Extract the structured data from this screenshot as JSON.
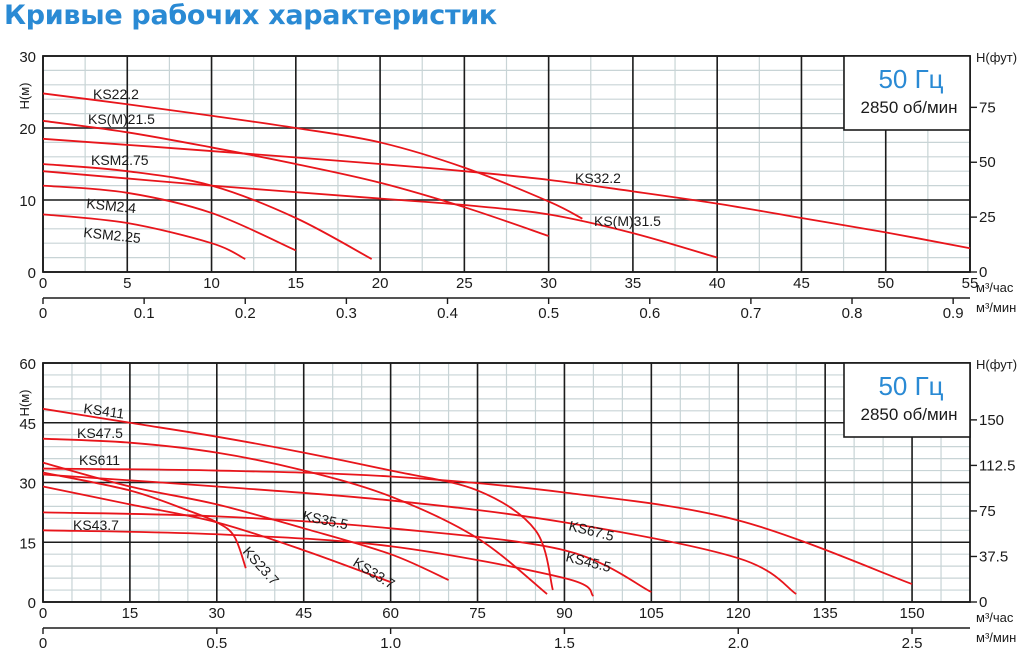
{
  "page": {
    "title": "Кривые рабочих характеристик"
  },
  "charts": [
    {
      "id": "top",
      "badge": {
        "frequency": "50 Гц",
        "speed": "2850 об/мин"
      },
      "y_left_label": "H(м)",
      "y_right_label": "H(фут)",
      "x_unit_1": "м³/час",
      "x_unit_2": "м³/мин",
      "y_ticks": [
        "0",
        "10",
        "20",
        "30"
      ],
      "y_right_ticks": [
        "0",
        "25",
        "50",
        "75"
      ],
      "x_ticks": [
        "0",
        "5",
        "10",
        "15",
        "20",
        "25",
        "30",
        "35",
        "40",
        "45",
        "50",
        "55"
      ],
      "x2_ticks": [
        "0",
        "0.1",
        "0.2",
        "0.3",
        "0.4",
        "0.5",
        "0.6",
        "0.7",
        "0.8",
        "0.9"
      ]
    },
    {
      "id": "bottom",
      "badge": {
        "frequency": "50 Гц",
        "speed": "2850 об/мин"
      },
      "y_left_label": "H(м)",
      "y_right_label": "H(фут)",
      "x_unit_1": "м³/час",
      "x_unit_2": "м³/мин",
      "y_ticks": [
        "0",
        "15",
        "30",
        "45",
        "60"
      ],
      "y_right_ticks": [
        "0",
        "37.5",
        "75",
        "112.5",
        "150"
      ],
      "x_ticks": [
        "0",
        "15",
        "30",
        "45",
        "60",
        "75",
        "90",
        "105",
        "120",
        "135",
        "150"
      ],
      "x2_ticks": [
        "0",
        "0.5",
        "1.0",
        "1.5",
        "2.0",
        "2.5"
      ]
    }
  ],
  "chart_data": [
    {
      "type": "line",
      "title": "Кривые рабочих характеристик — 50 Гц, 2850 об/мин",
      "xlabel": "м³/час",
      "x2label": "м³/мин",
      "ylabel": "H(м)",
      "y2label": "H(фут)",
      "xlim": [
        0,
        55
      ],
      "ylim": [
        0,
        30
      ],
      "grid": true,
      "series": [
        {
          "name": "KS22.2",
          "x": [
            0,
            5,
            10,
            15,
            20,
            25,
            30,
            32
          ],
          "y": [
            24.8,
            23.3,
            21.7,
            20.0,
            18.0,
            14.5,
            9.8,
            7.4
          ]
        },
        {
          "name": "KS(M)21.5",
          "x": [
            0,
            5,
            10,
            15,
            20,
            25,
            30
          ],
          "y": [
            21.0,
            19.4,
            17.3,
            15.0,
            12.4,
            9.0,
            5.0
          ]
        },
        {
          "name": "KS32.2",
          "x": [
            0,
            10,
            20,
            25,
            30,
            35,
            40,
            45,
            50,
            55
          ],
          "y": [
            18.5,
            16.8,
            15.0,
            14.0,
            12.8,
            11.2,
            9.5,
            7.5,
            5.5,
            3.3
          ]
        },
        {
          "name": "KS(M)31.5",
          "x": [
            0,
            10,
            20,
            25,
            30,
            35,
            40
          ],
          "y": [
            14.0,
            12.0,
            10.2,
            9.3,
            8.0,
            5.4,
            2.0
          ]
        },
        {
          "name": "KSM2.75",
          "x": [
            0,
            5,
            10,
            15,
            19.5
          ],
          "y": [
            15.0,
            14.0,
            12.0,
            7.5,
            1.8
          ]
        },
        {
          "name": "KSM2.4",
          "x": [
            0,
            5,
            10,
            15
          ],
          "y": [
            12.0,
            11.0,
            8.2,
            3.0
          ]
        },
        {
          "name": "KSM2.25",
          "x": [
            0,
            5,
            10,
            12
          ],
          "y": [
            8.0,
            6.8,
            4.0,
            1.8
          ]
        }
      ]
    },
    {
      "type": "line",
      "title": "Кривые рабочих характеристик — 50 Гц, 2850 об/мин",
      "xlabel": "м³/час",
      "x2label": "м³/мин",
      "ylabel": "H(м)",
      "y2label": "H(фут)",
      "xlim": [
        0,
        160
      ],
      "ylim": [
        0,
        60
      ],
      "grid": true,
      "series": [
        {
          "name": "KS411",
          "x": [
            0,
            15,
            30,
            45,
            60,
            75,
            85,
            88
          ],
          "y": [
            48.5,
            45.0,
            41.5,
            37.5,
            33.0,
            28.0,
            18.0,
            3.0
          ]
        },
        {
          "name": "KS47.5",
          "x": [
            0,
            15,
            30,
            45,
            60,
            75,
            87
          ],
          "y": [
            41.0,
            40.0,
            37.5,
            33.0,
            26.5,
            16.0,
            2.0
          ]
        },
        {
          "name": "KS611",
          "x": [
            0,
            30,
            60,
            90,
            120,
            150
          ],
          "y": [
            33.5,
            33.0,
            31.5,
            27.5,
            20.5,
            4.5
          ]
        },
        {
          "name": "KS67.5",
          "x": [
            0,
            30,
            60,
            90,
            120,
            130
          ],
          "y": [
            32.0,
            29.0,
            25.5,
            20.0,
            11.0,
            2.0
          ]
        },
        {
          "name": "KS35.5",
          "x": [
            0,
            15,
            30,
            45,
            60,
            70
          ],
          "y": [
            35.0,
            29.0,
            24.5,
            18.5,
            12.0,
            5.5
          ]
        },
        {
          "name": "KS45.5",
          "x": [
            0,
            30,
            60,
            90,
            105
          ],
          "y": [
            22.5,
            21.5,
            18.5,
            13.0,
            2.5
          ]
        },
        {
          "name": "KS33.7",
          "x": [
            0,
            15,
            30,
            45,
            60
          ],
          "y": [
            29.0,
            24.5,
            20.0,
            13.0,
            5.0
          ]
        },
        {
          "name": "KS43.7",
          "x": [
            0,
            30,
            60,
            90,
            95
          ],
          "y": [
            18.0,
            17.0,
            14.0,
            6.0,
            1.5
          ]
        },
        {
          "name": "KS23.7",
          "x": [
            0,
            15,
            25,
            30,
            33,
            35
          ],
          "y": [
            32.5,
            28.0,
            23.0,
            20.0,
            16.5,
            8.5
          ]
        }
      ]
    }
  ]
}
